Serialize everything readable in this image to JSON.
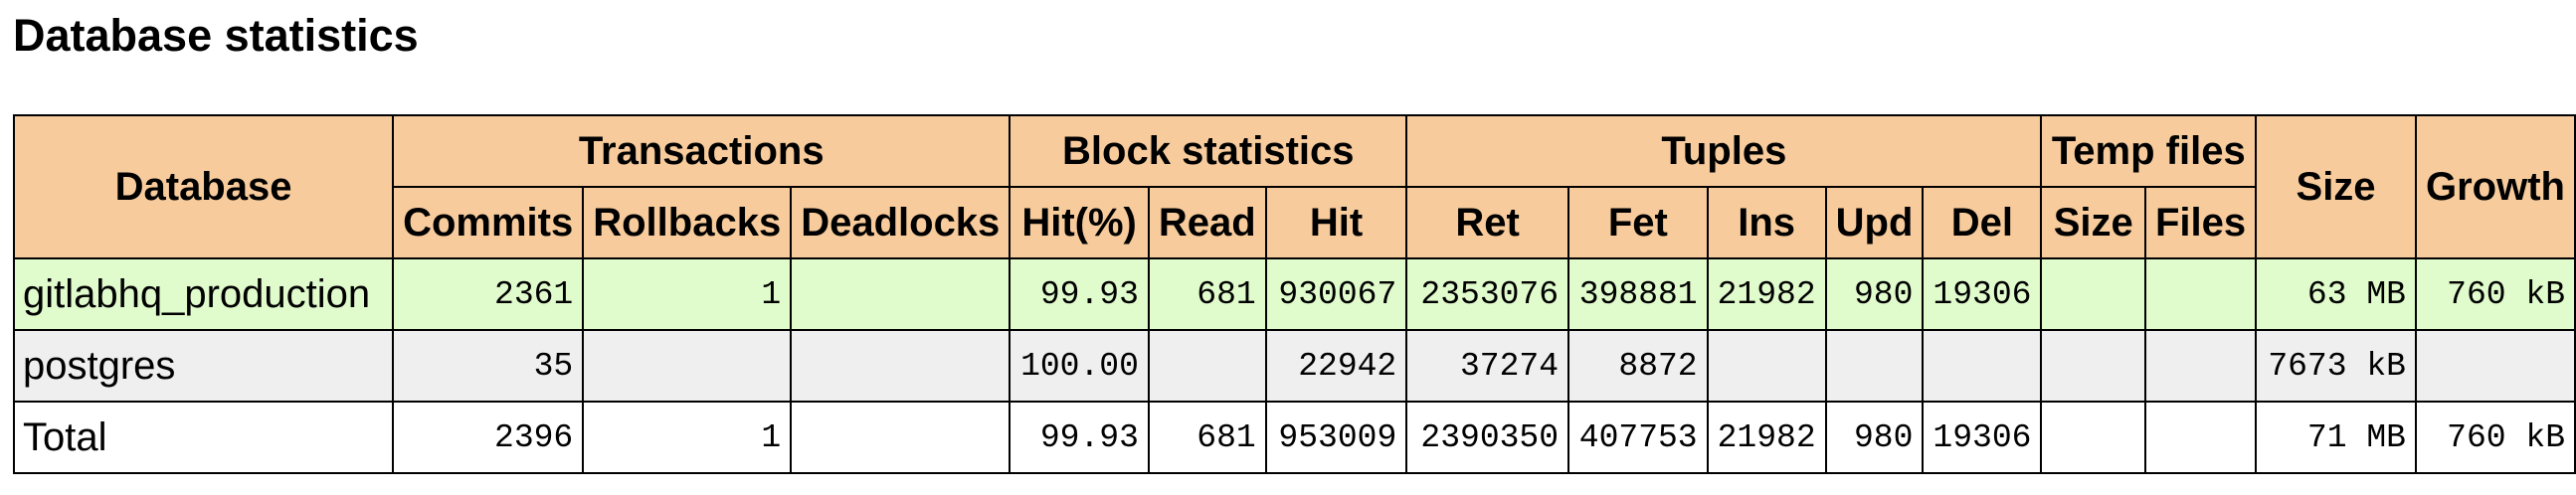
{
  "title": "Database statistics",
  "header": {
    "database": "Database",
    "transactions": "Transactions",
    "block_statistics": "Block statistics",
    "tuples": "Tuples",
    "temp_files": "Temp files",
    "size": "Size",
    "growth": "Growth",
    "commits": "Commits",
    "rollbacks": "Rollbacks",
    "deadlocks": "Deadlocks",
    "hit_pct": "Hit(%)",
    "read": "Read",
    "hit": "Hit",
    "ret": "Ret",
    "fet": "Fet",
    "ins": "Ins",
    "upd": "Upd",
    "del": "Del",
    "temp_size": "Size",
    "temp_files_count": "Files"
  },
  "rows": [
    {
      "database": "gitlabhq_production",
      "commits": "2361",
      "rollbacks": "1",
      "deadlocks": "",
      "hit_pct": "99.93",
      "read": "681",
      "hit": "930067",
      "ret": "2353076",
      "fet": "398881",
      "ins": "21982",
      "upd": "980",
      "del": "19306",
      "temp_size": "",
      "temp_files": "",
      "size": "63 MB",
      "growth": "760 kB"
    },
    {
      "database": "postgres",
      "commits": "35",
      "rollbacks": "",
      "deadlocks": "",
      "hit_pct": "100.00",
      "read": "",
      "hit": "22942",
      "ret": "37274",
      "fet": "8872",
      "ins": "",
      "upd": "",
      "del": "",
      "temp_size": "",
      "temp_files": "",
      "size": "7673 kB",
      "growth": ""
    },
    {
      "database": "Total",
      "commits": "2396",
      "rollbacks": "1",
      "deadlocks": "",
      "hit_pct": "99.93",
      "read": "681",
      "hit": "953009",
      "ret": "2390350",
      "fet": "407753",
      "ins": "21982",
      "upd": "980",
      "del": "19306",
      "temp_size": "",
      "temp_files": "",
      "size": "71 MB",
      "growth": "760 kB"
    }
  ],
  "colors": {
    "header_bg": "#f7cb9c",
    "row_highlight_bg": "#e0fbcc",
    "row_alt_bg": "#efefef",
    "row_bg": "#ffffff",
    "border": "#000000"
  }
}
